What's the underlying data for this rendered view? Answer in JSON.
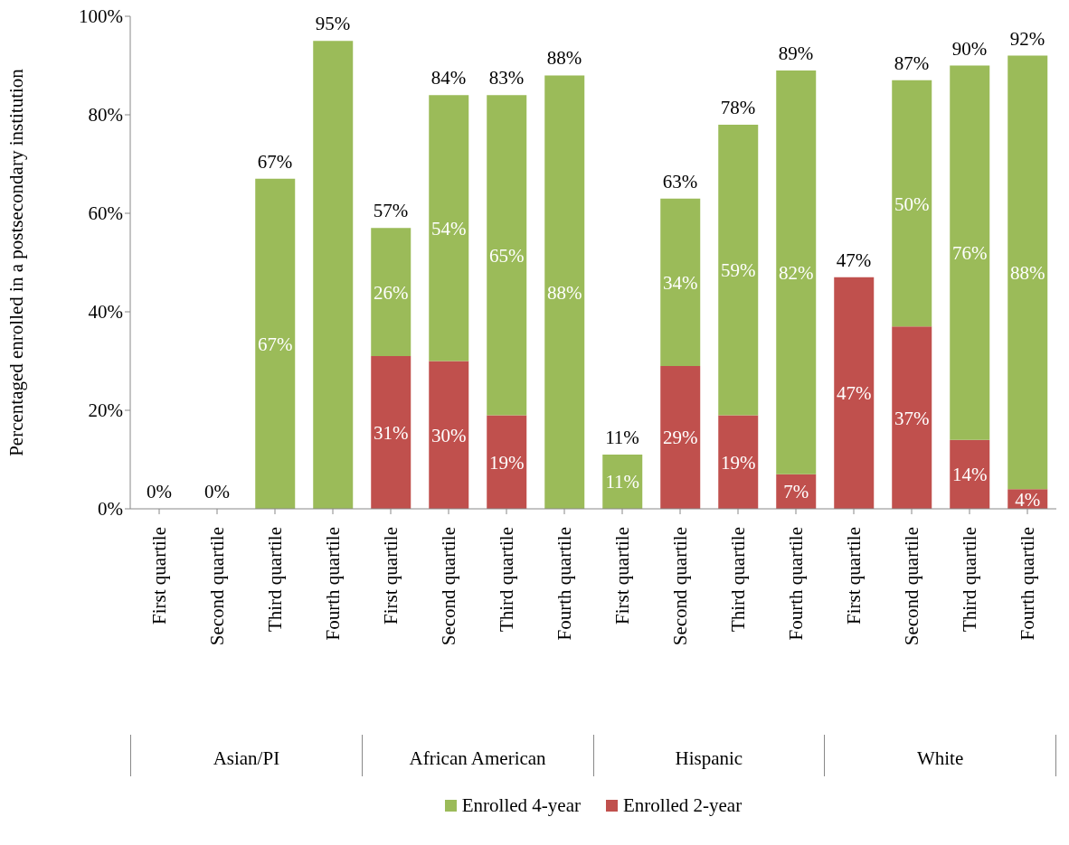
{
  "chart_data": {
    "type": "bar",
    "stacked": true,
    "ylabel": "Percentaged enrolled in a postsecondary institution",
    "categories": [
      "First quartile",
      "Second quartile",
      "Third quartile",
      "Fourth quartile",
      "First quartile",
      "Second quartile",
      "Third quartile",
      "Fourth quartile",
      "First quartile",
      "Second quartile",
      "Third quartile",
      "Fourth quartile",
      "First quartile",
      "Second quartile",
      "Third quartile",
      "Fourth quartile"
    ],
    "series": [
      {
        "name": "Enrolled 2-year",
        "color": "#c0504d",
        "values": [
          0,
          0,
          0,
          0,
          31,
          30,
          19,
          0,
          0,
          29,
          19,
          7,
          47,
          37,
          14,
          4
        ],
        "value_labels": [
          null,
          null,
          null,
          null,
          "31%",
          "30%",
          "19%",
          null,
          null,
          "29%",
          "19%",
          "7%",
          "47%",
          "37%",
          "14%",
          "4%"
        ]
      },
      {
        "name": "Enrolled 4-year",
        "color": "#9bbb59",
        "values": [
          0,
          0,
          67,
          95,
          26,
          54,
          65,
          88,
          11,
          34,
          59,
          82,
          0,
          50,
          76,
          88
        ],
        "value_labels": [
          null,
          null,
          "67%",
          null,
          "26%",
          "54%",
          "65%",
          "88%",
          "11%",
          "34%",
          "59%",
          "82%",
          null,
          "50%",
          "76%",
          "88%"
        ]
      }
    ],
    "totals": [
      "0%",
      "0%",
      "67%",
      "95%",
      "57%",
      "84%",
      "83%",
      "88%",
      "11%",
      "63%",
      "78%",
      "89%",
      "47%",
      "87%",
      "90%",
      "92%"
    ],
    "annotations": [
      "Asian/PI",
      "African American",
      "Hispanic",
      "White"
    ],
    "ylim": [
      0,
      100
    ],
    "yticks": [
      {
        "value": 0,
        "label": "0%"
      },
      {
        "value": 20,
        "label": "20%"
      },
      {
        "value": 40,
        "label": "40%"
      },
      {
        "value": 60,
        "label": "60%"
      },
      {
        "value": 80,
        "label": "80%"
      },
      {
        "value": 100,
        "label": "100%"
      }
    ],
    "grid": false,
    "legend": "bottom"
  }
}
